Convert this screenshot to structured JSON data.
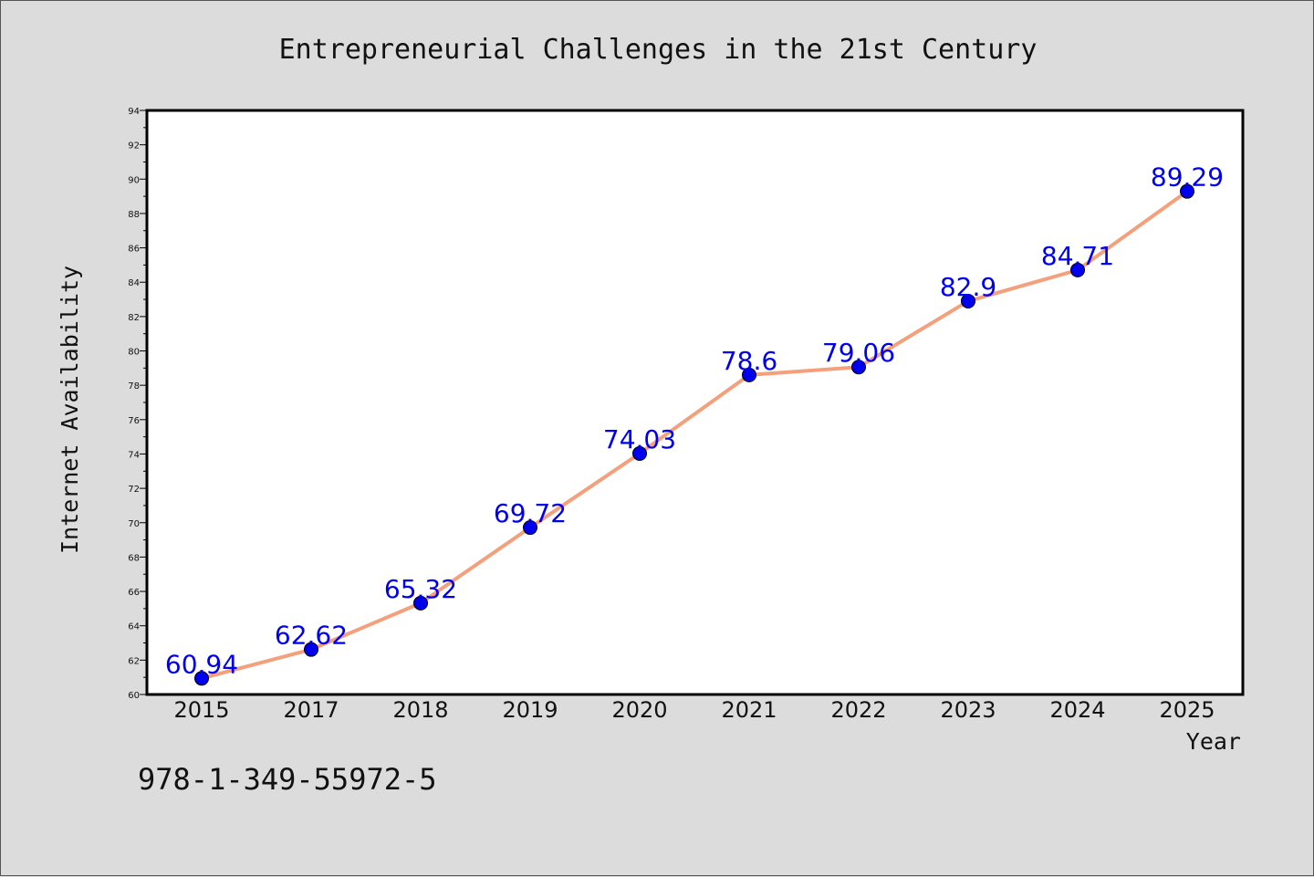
{
  "chart_data": {
    "type": "line",
    "title": "Entrepreneurial Challenges in the 21st Century",
    "xlabel": "Year",
    "ylabel": "Internet Availability",
    "categories": [
      "2015",
      "2017",
      "2018",
      "2019",
      "2020",
      "2021",
      "2022",
      "2023",
      "2024",
      "2025"
    ],
    "series": [
      {
        "values": [
          60.94,
          62.62,
          65.32,
          69.72,
          74.03,
          78.6,
          79.06,
          82.9,
          84.71,
          89.29
        ],
        "data_labels": [
          "60.94",
          "62.62",
          "65.32",
          "69.72",
          "74.03",
          "78.6",
          "79.06",
          "82.9",
          "84.71",
          "89.29"
        ],
        "line_color": "#f4a07c",
        "marker_color": "#0000ee",
        "label_color": "#0000ee"
      }
    ],
    "ylim": [
      60,
      94
    ],
    "yticks": [
      60,
      62,
      64,
      66,
      68,
      70,
      72,
      74,
      76,
      78,
      80,
      82,
      84,
      86,
      88,
      90,
      92,
      94
    ],
    "grid": false,
    "background_color": "#dcdcdc",
    "plot_background_color": "#ffffff"
  },
  "annotation": {
    "isbn": "978-1-349-55972-5"
  }
}
